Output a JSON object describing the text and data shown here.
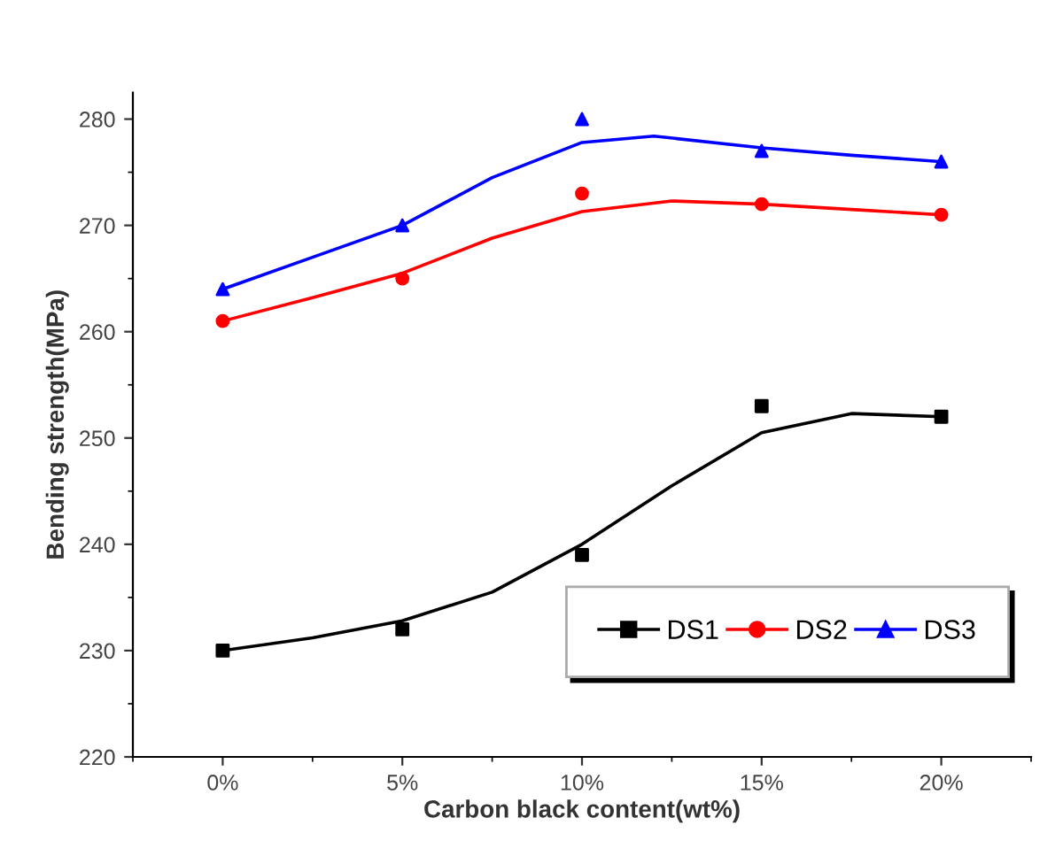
{
  "chart_data": {
    "type": "scatter",
    "xlabel": "Carbon black content(wt%)",
    "ylabel": "Bending strength(MPa)",
    "xlim": [
      -2.5,
      22.5
    ],
    "xticks": [
      {
        "value": 0,
        "label": "0%"
      },
      {
        "value": 5,
        "label": "5%"
      },
      {
        "value": 10,
        "label": "10%"
      },
      {
        "value": 15,
        "label": "15%"
      },
      {
        "value": 20,
        "label": "20%"
      }
    ],
    "ylim": [
      220,
      282.5
    ],
    "yticks": [
      220,
      230,
      240,
      250,
      260,
      270,
      280
    ],
    "grid": false,
    "legend": "bottom right",
    "series": [
      {
        "name": "DS1",
        "marker": "square",
        "color": "#000000",
        "x": [
          0,
          5,
          10,
          15,
          20
        ],
        "values": [
          230,
          232,
          239,
          253,
          252
        ]
      },
      {
        "name": "DS2",
        "marker": "circle",
        "color": "#ff0000",
        "x": [
          0,
          5,
          10,
          15,
          20
        ],
        "values": [
          261,
          265,
          273,
          272,
          271
        ]
      },
      {
        "name": "DS3",
        "marker": "triangle",
        "color": "#0000ff",
        "x": [
          0,
          5,
          10,
          15,
          20
        ],
        "values": [
          264,
          270,
          280,
          277,
          276
        ]
      },
      {
        "type": "line",
        "color": "#000000",
        "x": [
          0,
          2.5,
          5,
          7.5,
          10,
          12.5,
          15,
          17.5,
          20
        ],
        "values": [
          230,
          231.2,
          232.8,
          235.5,
          240,
          245.5,
          250.5,
          252.3,
          252
        ]
      },
      {
        "type": "line",
        "color": "#ff0000",
        "x": [
          0,
          2.5,
          5,
          7.5,
          10,
          12.5,
          15,
          17.5,
          20
        ],
        "values": [
          261,
          263.2,
          265.5,
          268.8,
          271.3,
          272.3,
          272,
          271.5,
          271
        ]
      },
      {
        "type": "line",
        "color": "#0000ff",
        "x": [
          0,
          2.5,
          5,
          7.5,
          10,
          12,
          15,
          17.5,
          20
        ],
        "values": [
          264,
          267,
          270,
          274.5,
          277.8,
          278.4,
          277.3,
          276.6,
          276
        ]
      }
    ]
  }
}
